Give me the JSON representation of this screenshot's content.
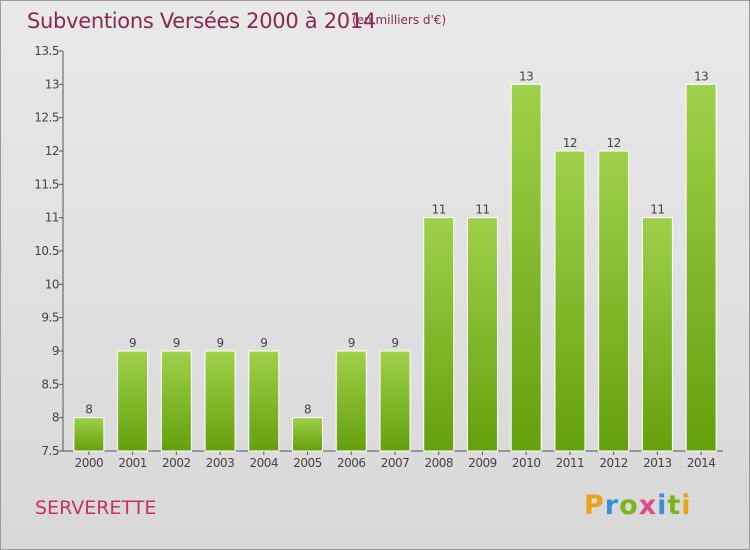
{
  "header": {
    "title": "Subventions Versées 2000 à 2014",
    "unit": "(en milliers d'€)"
  },
  "footer": {
    "commune": "SERVERETTE",
    "logo_text": "Proxiti"
  },
  "colors": {
    "bar_light": "#9fd14a",
    "bar_dark": "#64a00c",
    "title": "#8a2752",
    "commune": "#c8315c"
  },
  "chart_data": {
    "type": "bar",
    "categories": [
      "2000",
      "2001",
      "2002",
      "2003",
      "2004",
      "2005",
      "2006",
      "2007",
      "2008",
      "2009",
      "2010",
      "2011",
      "2012",
      "2013",
      "2014"
    ],
    "values": [
      8,
      9,
      9,
      9,
      9,
      8,
      9,
      9,
      11,
      11,
      13,
      12,
      12,
      11,
      13
    ],
    "value_labels": [
      "8",
      "9",
      "9",
      "9",
      "9",
      "8",
      "9",
      "9",
      "11",
      "11",
      "13",
      "12",
      "12",
      "11",
      "13"
    ],
    "y_ticks": [
      7.5,
      8,
      8.5,
      9,
      9.5,
      10,
      10.5,
      11,
      11.5,
      12,
      12.5,
      13,
      13.5
    ],
    "y_tick_labels": [
      "7.5",
      "8",
      "8.5",
      "9",
      "9.5",
      "10",
      "10.5",
      "11",
      "11.5",
      "12",
      "12.5",
      "13",
      "13.5"
    ],
    "ylim": [
      7.5,
      13.5
    ],
    "title": "Subventions Versées 2000 à 2014",
    "xlabel": "",
    "ylabel": "",
    "grid": false
  }
}
